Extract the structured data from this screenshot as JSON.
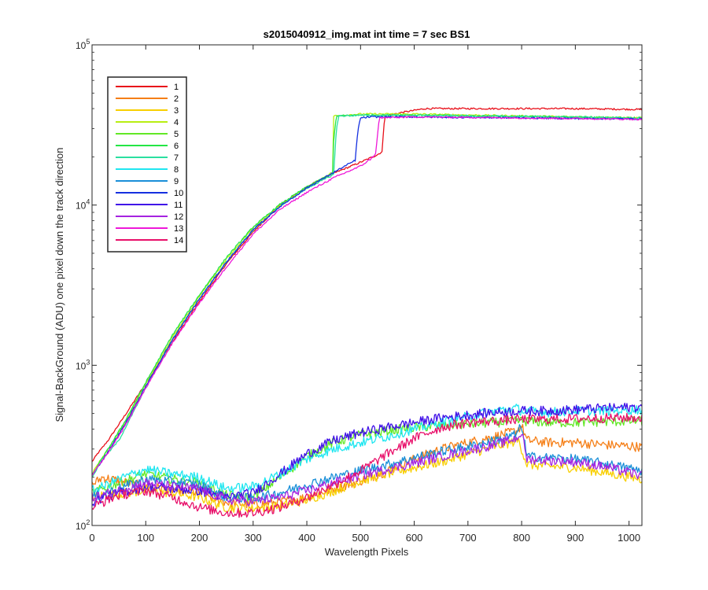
{
  "chart_data": {
    "type": "line",
    "title": "s2015040912_img.mat int time = 7 sec   BS1",
    "xlabel": "Wavelength Pixels",
    "ylabel": "Signal-BackGround (ADU) one pixel down the track direction",
    "xlim": [
      0,
      1024
    ],
    "ylim": [
      100,
      100000
    ],
    "yscale": "log",
    "xticks": [
      0,
      100,
      200,
      300,
      400,
      500,
      600,
      700,
      800,
      900,
      1000
    ],
    "xtick_labels": [
      "0",
      "100",
      "200",
      "300",
      "400",
      "500",
      "600",
      "700",
      "800",
      "900",
      "1000"
    ],
    "yticks": [
      {
        "base": "10",
        "exp": "2",
        "value": 100
      },
      {
        "base": "10",
        "exp": "3",
        "value": 1000
      },
      {
        "base": "10",
        "exp": "4",
        "value": 10000
      },
      {
        "base": "10",
        "exp": "5",
        "value": 100000
      }
    ],
    "grid": false,
    "legend_position": "top-left",
    "series": [
      {
        "name": "1",
        "color": "#e8101a",
        "x": [
          0,
          10,
          30,
          60,
          100,
          150,
          200,
          250,
          300,
          350,
          400,
          450,
          500,
          530,
          540,
          545,
          580,
          620,
          700,
          800,
          900,
          1024
        ],
        "y": [
          250,
          280,
          340,
          480,
          770,
          1400,
          2500,
          4300,
          6800,
          10000,
          13000,
          15800,
          18500,
          20500,
          21500,
          36000,
          38000,
          40000,
          40000,
          40000,
          40000,
          39500
        ]
      },
      {
        "name": "2",
        "color": "#f57f17",
        "x": [
          0,
          20,
          50,
          100,
          150,
          200,
          250,
          300,
          350,
          400,
          450,
          500,
          550,
          600,
          650,
          700,
          750,
          790,
          800,
          810,
          850,
          900,
          950,
          1024
        ],
        "y": [
          180,
          200,
          190,
          175,
          168,
          160,
          140,
          135,
          140,
          150,
          170,
          190,
          220,
          260,
          300,
          330,
          360,
          390,
          420,
          340,
          330,
          330,
          320,
          310
        ]
      },
      {
        "name": "3",
        "color": "#f8cf00",
        "x": [
          0,
          20,
          50,
          100,
          150,
          200,
          250,
          300,
          350,
          400,
          450,
          500,
          550,
          600,
          650,
          700,
          750,
          795,
          800,
          810,
          850,
          900,
          950,
          1024
        ],
        "y": [
          150,
          155,
          158,
          165,
          160,
          150,
          130,
          128,
          132,
          145,
          165,
          190,
          210,
          230,
          250,
          280,
          310,
          340,
          300,
          240,
          235,
          230,
          215,
          195
        ]
      },
      {
        "name": "4",
        "color": "#b8ee12",
        "x": [
          0,
          10,
          30,
          60,
          100,
          150,
          200,
          250,
          300,
          350,
          400,
          440,
          448,
          450,
          500,
          600,
          700,
          800,
          900,
          1024
        ],
        "y": [
          210,
          240,
          300,
          430,
          760,
          1500,
          2700,
          4600,
          7200,
          10000,
          12800,
          15500,
          16000,
          36000,
          37000,
          37000,
          36500,
          36000,
          35500,
          35000
        ]
      },
      {
        "name": "5",
        "color": "#62e826",
        "x": [
          0,
          20,
          50,
          100,
          150,
          200,
          250,
          300,
          350,
          400,
          450,
          500,
          550,
          600,
          650,
          700,
          750,
          800,
          850,
          900,
          950,
          1024
        ],
        "y": [
          160,
          170,
          185,
          210,
          195,
          185,
          155,
          150,
          200,
          270,
          330,
          370,
          390,
          410,
          420,
          430,
          440,
          450,
          440,
          440,
          445,
          450
        ]
      },
      {
        "name": "6",
        "color": "#24e645",
        "x": [
          0,
          10,
          30,
          60,
          100,
          150,
          200,
          250,
          300,
          350,
          400,
          448,
          450,
          455,
          500,
          600,
          700,
          800,
          900,
          1024
        ],
        "y": [
          205,
          235,
          300,
          440,
          780,
          1550,
          2750,
          4700,
          7300,
          10100,
          13000,
          15800,
          25000,
          36000,
          36500,
          36500,
          36000,
          35800,
          35500,
          35000
        ]
      },
      {
        "name": "7",
        "color": "#2adfa0",
        "x": [
          0,
          20,
          50,
          100,
          150,
          200,
          250,
          300,
          350,
          400,
          450,
          455,
          460,
          500,
          600,
          700,
          800,
          900,
          1024
        ],
        "y": [
          200,
          260,
          340,
          720,
          1450,
          2600,
          4400,
          7000,
          9800,
          12700,
          15500,
          30000,
          36000,
          36300,
          36300,
          36000,
          35700,
          35300,
          34800
        ]
      },
      {
        "name": "8",
        "color": "#1fe6f0",
        "x": [
          0,
          20,
          50,
          100,
          150,
          200,
          250,
          300,
          350,
          400,
          450,
          500,
          550,
          600,
          650,
          700,
          750,
          790,
          800,
          850,
          900,
          950,
          1024
        ],
        "y": [
          165,
          175,
          195,
          225,
          210,
          200,
          170,
          175,
          210,
          260,
          300,
          330,
          360,
          400,
          440,
          480,
          520,
          540,
          520,
          510,
          520,
          520,
          530
        ]
      },
      {
        "name": "9",
        "color": "#1a8fd8",
        "x": [
          0,
          20,
          50,
          100,
          150,
          200,
          250,
          300,
          350,
          400,
          450,
          500,
          550,
          600,
          650,
          700,
          750,
          790,
          800,
          810,
          850,
          900,
          950,
          1024
        ],
        "y": [
          150,
          158,
          170,
          195,
          188,
          180,
          150,
          148,
          160,
          180,
          200,
          220,
          240,
          265,
          290,
          310,
          340,
          370,
          420,
          270,
          265,
          260,
          245,
          220
        ]
      },
      {
        "name": "10",
        "color": "#1530e0",
        "x": [
          0,
          10,
          30,
          60,
          100,
          150,
          200,
          250,
          300,
          350,
          400,
          450,
          490,
          495,
          500,
          520,
          600,
          700,
          800,
          900,
          1024
        ],
        "y": [
          205,
          230,
          290,
          420,
          740,
          1450,
          2600,
          4400,
          7000,
          9800,
          12800,
          16000,
          19000,
          29000,
          35000,
          35500,
          35500,
          35200,
          35000,
          34700,
          34500
        ]
      },
      {
        "name": "11",
        "color": "#4010e8",
        "x": [
          0,
          20,
          50,
          100,
          150,
          200,
          250,
          300,
          350,
          400,
          450,
          500,
          550,
          600,
          650,
          700,
          750,
          800,
          850,
          900,
          950,
          1024
        ],
        "y": [
          140,
          150,
          160,
          175,
          170,
          165,
          150,
          160,
          210,
          280,
          340,
          380,
          410,
          440,
          470,
          490,
          510,
          520,
          520,
          530,
          540,
          550
        ]
      },
      {
        "name": "12",
        "color": "#a523e0",
        "x": [
          0,
          20,
          50,
          100,
          150,
          200,
          250,
          300,
          350,
          400,
          450,
          500,
          550,
          600,
          650,
          700,
          750,
          790,
          800,
          810,
          850,
          900,
          950,
          1024
        ],
        "y": [
          150,
          155,
          165,
          185,
          175,
          170,
          145,
          142,
          150,
          165,
          185,
          205,
          225,
          245,
          270,
          295,
          320,
          350,
          380,
          260,
          255,
          250,
          235,
          205
        ]
      },
      {
        "name": "13",
        "color": "#ee18d8",
        "x": [
          0,
          10,
          30,
          60,
          100,
          150,
          200,
          250,
          300,
          350,
          400,
          450,
          500,
          520,
          528,
          535,
          600,
          700,
          800,
          900,
          1024
        ],
        "y": [
          205,
          230,
          285,
          410,
          720,
          1380,
          2450,
          4100,
          6600,
          9400,
          12000,
          14800,
          17500,
          19500,
          21000,
          35000,
          35500,
          35300,
          35000,
          34700,
          34300
        ]
      },
      {
        "name": "14",
        "color": "#e8106a",
        "x": [
          0,
          20,
          50,
          100,
          150,
          200,
          250,
          300,
          350,
          400,
          450,
          500,
          550,
          600,
          650,
          700,
          750,
          800,
          850,
          900,
          950,
          1024
        ],
        "y": [
          130,
          140,
          155,
          165,
          150,
          130,
          120,
          120,
          130,
          150,
          180,
          220,
          280,
          350,
          410,
          440,
          450,
          460,
          460,
          465,
          470,
          470
        ]
      }
    ]
  }
}
